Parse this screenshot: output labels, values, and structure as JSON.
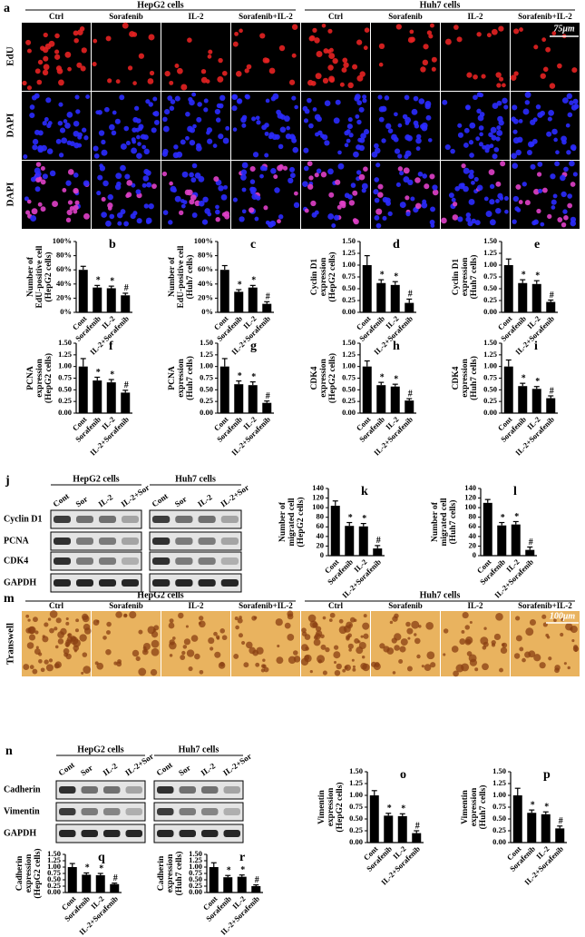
{
  "panel_a": {
    "panel": "a",
    "groups": [
      "HepG2 cells",
      "Huh7 cells"
    ],
    "columns": [
      "Ctrl",
      "Sorafenib",
      "IL-2",
      "Sorafenib+IL-2",
      "Ctrl",
      "Sorafenib",
      "IL-2",
      "Sorafenib+IL-2"
    ],
    "rows": [
      "EdU",
      "DAPI",
      "DAPI"
    ],
    "scale": "75μm"
  },
  "panel_j": {
    "panel": "j",
    "groups": [
      "HepG2 cells",
      "Huh7 cells"
    ],
    "lanes": [
      "Cont",
      "Sor",
      "IL-2",
      "IL-2+Sor",
      "Cont",
      "Sor",
      "IL-2",
      "IL-2+Sor"
    ],
    "rows": [
      "Cyclin D1",
      "PCNA",
      "CDK4",
      "GAPDH"
    ]
  },
  "panel_m": {
    "panel": "m",
    "groups": [
      "HepG2 cells",
      "Huh7 cells"
    ],
    "columns": [
      "Ctrl",
      "Sorafenib",
      "IL-2",
      "Sorafenib+IL-2",
      "Ctrl",
      "Sorafenib",
      "IL-2",
      "Sorafenib+IL-2"
    ],
    "row": "Transwell",
    "scale": "100μm"
  },
  "panel_n": {
    "panel": "n",
    "groups": [
      "HepG2 cells",
      "Huh7 cells"
    ],
    "lanes": [
      "Cont",
      "Sor",
      "IL-2",
      "IL-2+Sor",
      "Cont",
      "Sor",
      "IL-2",
      "IL-2+Sor"
    ],
    "rows": [
      "Cadherin",
      "Vimentin",
      "GAPDH"
    ]
  },
  "chart_data": [
    {
      "type": "bar",
      "panel": "b",
      "ylabel": [
        "Number of",
        "EdU-positive cell",
        "(HepG2 cells)"
      ],
      "categories": [
        "Cont",
        "Sorafenib",
        "IL-2",
        "IL-2+Sorafenib"
      ],
      "values": [
        60,
        35,
        34,
        24
      ],
      "errors": [
        5,
        3,
        3,
        3
      ],
      "annotations": [
        null,
        "*",
        "*",
        "#"
      ],
      "color": "#000000",
      "ylim": [
        0,
        100
      ],
      "yticks": [
        {
          "value": 0,
          "label": "0%"
        },
        {
          "value": 20,
          "label": "20%"
        },
        {
          "value": 40,
          "label": "40%"
        },
        {
          "value": 60,
          "label": "60%"
        },
        {
          "value": 80,
          "label": "80%"
        },
        {
          "value": 100,
          "label": "100%"
        }
      ]
    },
    {
      "type": "bar",
      "panel": "c",
      "ylabel": [
        "Number of",
        "EdU-positive cell",
        "(Huh7 cells)"
      ],
      "categories": [
        "Cont",
        "Sorafenib",
        "IL-2",
        "IL-2+Sorafenib"
      ],
      "values": [
        60,
        29,
        35,
        12
      ],
      "errors": [
        6,
        3,
        3,
        3
      ],
      "annotations": [
        null,
        "*",
        "*",
        "#"
      ],
      "color": "#000000",
      "ylim": [
        0,
        100
      ],
      "yticks": [
        {
          "value": 0,
          "label": "0%"
        },
        {
          "value": 20,
          "label": "20%"
        },
        {
          "value": 40,
          "label": "40%"
        },
        {
          "value": 60,
          "label": "60%"
        },
        {
          "value": 80,
          "label": "80%"
        },
        {
          "value": 100,
          "label": "100%"
        }
      ]
    },
    {
      "type": "bar",
      "panel": "d",
      "ylabel": [
        "Cyclin D1",
        "expression",
        "(HepG2 cells)"
      ],
      "categories": [
        "Cont",
        "Sorafenib",
        "IL-2",
        "IL-2+Sorafenib"
      ],
      "values": [
        1.0,
        0.62,
        0.58,
        0.2
      ],
      "errors": [
        0.2,
        0.07,
        0.07,
        0.08
      ],
      "annotations": [
        null,
        "*",
        "*",
        "#"
      ],
      "color": "#000000",
      "ylim": [
        0,
        1.5
      ],
      "yticks": [
        {
          "value": 0,
          "label": "0.00"
        },
        0.25,
        {
          "value": 0.5,
          "label": "0.50"
        },
        0.75,
        {
          "value": 1,
          "label": "1.00"
        },
        1.25,
        {
          "value": 1.5,
          "label": "1.50"
        }
      ]
    },
    {
      "type": "bar",
      "panel": "e",
      "ylabel": [
        "Cyclin D1",
        "expression",
        "(Huh7 cells)"
      ],
      "categories": [
        "Cont",
        "Sorafenib",
        "IL-2",
        "IL-2+Sorafenib"
      ],
      "values": [
        1.0,
        0.62,
        0.6,
        0.22
      ],
      "errors": [
        0.13,
        0.07,
        0.07,
        0.04
      ],
      "annotations": [
        null,
        "*",
        "*",
        "#"
      ],
      "color": "#000000",
      "ylim": [
        0,
        1.5
      ],
      "yticks": [
        {
          "value": 0,
          "label": "0.00"
        },
        0.25,
        {
          "value": 0.5,
          "label": "0.50"
        },
        0.75,
        {
          "value": 1,
          "label": "1.00"
        },
        1.25,
        {
          "value": 1.5,
          "label": "1.50"
        }
      ]
    },
    {
      "type": "bar",
      "panel": "f",
      "ylabel": [
        "PCNA",
        "expression",
        "(HepG2 cells)"
      ],
      "categories": [
        "Cont",
        "Sorafenib",
        "IL-2",
        "IL-2+Sorafenib"
      ],
      "values": [
        1.0,
        0.7,
        0.66,
        0.44
      ],
      "errors": [
        0.17,
        0.07,
        0.06,
        0.05
      ],
      "annotations": [
        null,
        "*",
        "*",
        "#"
      ],
      "color": "#000000",
      "ylim": [
        0,
        1.5
      ],
      "yticks": [
        {
          "value": 0,
          "label": "0.00"
        },
        0.25,
        {
          "value": 0.5,
          "label": "0.50"
        },
        0.75,
        {
          "value": 1,
          "label": "1.00"
        },
        1.25,
        {
          "value": 1.5,
          "label": "1.50"
        }
      ]
    },
    {
      "type": "bar",
      "panel": "g",
      "ylabel": [
        "PCNA",
        "expression",
        "(Huh7 cells)"
      ],
      "categories": [
        "Cont",
        "Sorafenib",
        "IL-2",
        "IL-2+Sorafenib"
      ],
      "values": [
        1.0,
        0.62,
        0.6,
        0.22
      ],
      "errors": [
        0.17,
        0.07,
        0.07,
        0.04
      ],
      "annotations": [
        null,
        "*",
        "*",
        "#"
      ],
      "color": "#000000",
      "ylim": [
        0,
        1.5
      ],
      "yticks": [
        {
          "value": 0,
          "label": "0.00"
        },
        0.25,
        {
          "value": 0.5,
          "label": "0.50"
        },
        0.75,
        {
          "value": 1,
          "label": "1.00"
        },
        1.25,
        {
          "value": 1.5,
          "label": "1.50"
        }
      ]
    },
    {
      "type": "bar",
      "panel": "h",
      "ylabel": [
        "CDK4",
        "expression",
        "(HepG2 cells)"
      ],
      "categories": [
        "Cont",
        "Sorafenib",
        "IL-2",
        "IL-2+Sorafenib"
      ],
      "values": [
        1.0,
        0.6,
        0.57,
        0.27
      ],
      "errors": [
        0.12,
        0.06,
        0.05,
        0.04
      ],
      "annotations": [
        null,
        "*",
        "*",
        "#"
      ],
      "color": "#000000",
      "ylim": [
        0,
        1.5
      ],
      "yticks": [
        {
          "value": 0,
          "label": "0.00"
        },
        0.25,
        {
          "value": 0.5,
          "label": "0.50"
        },
        0.75,
        {
          "value": 1,
          "label": "1.00"
        },
        1.25,
        {
          "value": 1.5,
          "label": "1.50"
        }
      ]
    },
    {
      "type": "bar",
      "panel": "i",
      "ylabel": [
        "CDK4",
        "expression",
        "(Huh7 cells)"
      ],
      "categories": [
        "Cont",
        "Sorafenib",
        "IL-2",
        "IL-2+Sorafenib"
      ],
      "values": [
        1.0,
        0.58,
        0.52,
        0.32
      ],
      "errors": [
        0.14,
        0.06,
        0.05,
        0.05
      ],
      "annotations": [
        null,
        "*",
        "*",
        "#"
      ],
      "color": "#000000",
      "ylim": [
        0,
        1.5
      ],
      "yticks": [
        {
          "value": 0,
          "label": "0.00"
        },
        0.25,
        {
          "value": 0.5,
          "label": "0.50"
        },
        0.75,
        {
          "value": 1,
          "label": "1.00"
        },
        1.25,
        {
          "value": 1.5,
          "label": "1.50"
        }
      ]
    },
    {
      "type": "bar",
      "panel": "k",
      "ylabel": [
        "Number of",
        "migrated cell",
        "(HepG2 cells)"
      ],
      "categories": [
        "Cont",
        "Sorafenib",
        "IL-2",
        "IL-2+Sorafenib"
      ],
      "values": [
        104,
        62,
        61,
        15
      ],
      "errors": [
        10,
        7,
        6,
        6
      ],
      "annotations": [
        null,
        "*",
        "*",
        "#"
      ],
      "color": "#000000",
      "ylim": [
        0,
        140
      ],
      "yticks": [
        0,
        20,
        40,
        60,
        80,
        100,
        120,
        140
      ]
    },
    {
      "type": "bar",
      "panel": "l",
      "ylabel": [
        "Number of",
        "migrated cell",
        "(Huh7 cells)"
      ],
      "categories": [
        "Cont",
        "Sorafenib",
        "IL-2",
        "IL-2+Sorafenib"
      ],
      "values": [
        110,
        63,
        65,
        12
      ],
      "errors": [
        7,
        6,
        6,
        6
      ],
      "annotations": [
        null,
        "*",
        "*",
        "#"
      ],
      "color": "#000000",
      "ylim": [
        0,
        140
      ],
      "yticks": [
        0,
        20,
        40,
        60,
        80,
        100,
        120,
        140
      ]
    },
    {
      "type": "bar",
      "panel": "o",
      "ylabel": [
        "Vimentin",
        "expression",
        "(HepG2 cells)"
      ],
      "categories": [
        "Cont",
        "Sorafenib",
        "IL-2",
        "IL-2+Sorafenib"
      ],
      "values": [
        1.0,
        0.57,
        0.56,
        0.2
      ],
      "errors": [
        0.1,
        0.05,
        0.05,
        0.05
      ],
      "annotations": [
        null,
        "*",
        "*",
        "#"
      ],
      "color": "#000000",
      "ylim": [
        0,
        1.5
      ],
      "yticks": [
        {
          "value": 0,
          "label": "0.00"
        },
        0.25,
        {
          "value": 0.5,
          "label": "0.50"
        },
        0.75,
        {
          "value": 1,
          "label": "1.00"
        },
        1.25,
        {
          "value": 1.5,
          "label": "1.50"
        }
      ]
    },
    {
      "type": "bar",
      "panel": "p",
      "ylabel": [
        "Vimentin",
        "expression",
        "(Huh7 cells)"
      ],
      "categories": [
        "Cont",
        "Sorafenib",
        "IL-2",
        "IL-2+Sorafenib"
      ],
      "values": [
        1.0,
        0.63,
        0.6,
        0.3
      ],
      "errors": [
        0.15,
        0.06,
        0.05,
        0.05
      ],
      "annotations": [
        null,
        "*",
        "*",
        "#"
      ],
      "color": "#000000",
      "ylim": [
        0,
        1.5
      ],
      "yticks": [
        {
          "value": 0,
          "label": "0.00"
        },
        0.25,
        {
          "value": 0.5,
          "label": "0.50"
        },
        0.75,
        {
          "value": 1,
          "label": "1.00"
        },
        1.25,
        {
          "value": 1.5,
          "label": "1.50"
        }
      ]
    },
    {
      "type": "bar",
      "panel": "q",
      "ylabel": [
        "Cadherin",
        "expression",
        "(HepG2 cells)"
      ],
      "categories": [
        "Cont",
        "Sorafenib",
        "IL-2",
        "IL-2+Sorafenib"
      ],
      "values": [
        1.0,
        0.7,
        0.68,
        0.33
      ],
      "errors": [
        0.14,
        0.07,
        0.07,
        0.04
      ],
      "annotations": [
        null,
        "*",
        "*",
        "#"
      ],
      "color": "#000000",
      "ylim": [
        0,
        1.5
      ],
      "yticks": [
        {
          "value": 0,
          "label": "0.00"
        },
        0.25,
        {
          "value": 0.5,
          "label": "0.50"
        },
        0.75,
        {
          "value": 1,
          "label": "1.00"
        },
        1.25,
        {
          "value": 1.5,
          "label": "1.50"
        }
      ]
    },
    {
      "type": "bar",
      "panel": "r",
      "ylabel": [
        "Cadherin",
        "expression",
        "(Huh7 cells)"
      ],
      "categories": [
        "Cont",
        "Sorafenib",
        "IL-2",
        "IL-2+Sorafenib"
      ],
      "values": [
        1.0,
        0.6,
        0.62,
        0.25
      ],
      "errors": [
        0.17,
        0.07,
        0.07,
        0.05
      ],
      "annotations": [
        null,
        "*",
        "*",
        "#"
      ],
      "color": "#000000",
      "ylim": [
        0,
        1.5
      ],
      "yticks": [
        {
          "value": 0,
          "label": "0.00"
        },
        0.25,
        {
          "value": 0.5,
          "label": "0.50"
        },
        0.75,
        {
          "value": 1,
          "label": "1.00"
        },
        1.25,
        {
          "value": 1.5,
          "label": "1.50"
        }
      ]
    }
  ]
}
